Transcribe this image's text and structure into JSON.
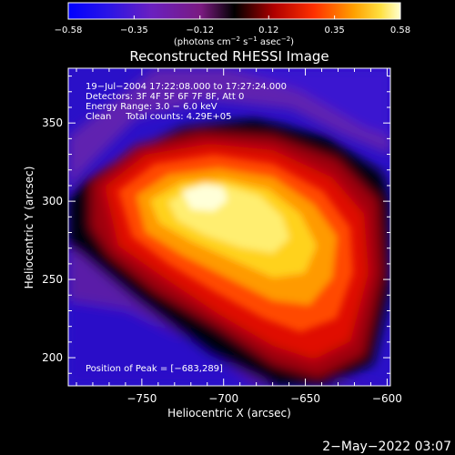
{
  "colorbar": {
    "min": -0.58,
    "max": 0.58,
    "ticks": [
      -0.58,
      -0.35,
      -0.12,
      0.12,
      0.35,
      0.58
    ],
    "tick_labels": [
      "−0.58",
      "−0.35",
      "−0.12",
      "0.12",
      "0.35",
      "0.58"
    ],
    "unit_main": "(photons cm",
    "unit_exp1": "−2",
    "unit_mid": " s",
    "unit_exp2": "−1",
    "unit_tail": " asec",
    "unit_exp3": "−2",
    "unit_close": ")"
  },
  "chart_data": {
    "type": "heatmap",
    "title": "Reconstructed RHESSI Image",
    "xlabel": "Heliocentric X (arcsec)",
    "ylabel": "Heliocentric Y (arcsec)",
    "xlim": [
      -795,
      -598
    ],
    "ylim": [
      182,
      385
    ],
    "x_ticks": [
      -750,
      -700,
      -650,
      -600
    ],
    "x_tick_labels": [
      "−750",
      "−700",
      "−650",
      "−600"
    ],
    "y_ticks": [
      200,
      250,
      300,
      350
    ],
    "y_tick_labels": [
      "200",
      "250",
      "300",
      "350"
    ],
    "peak": {
      "x": -683,
      "y": 289
    },
    "annotations": {
      "time": "19−Jul−2004 17:22:08.000 to 17:27:24.000",
      "detectors": "Detectors: 3F 4F 5F 6F 7F 8F, Att 0",
      "energy": "Energy Range: 3.0 − 6.0 keV",
      "clean": "Clean     Total counts: 4.29E+05",
      "peak_label": "Position of Peak = [−683,289]"
    }
  },
  "footer": {
    "date": "2−May−2022 03:07"
  }
}
